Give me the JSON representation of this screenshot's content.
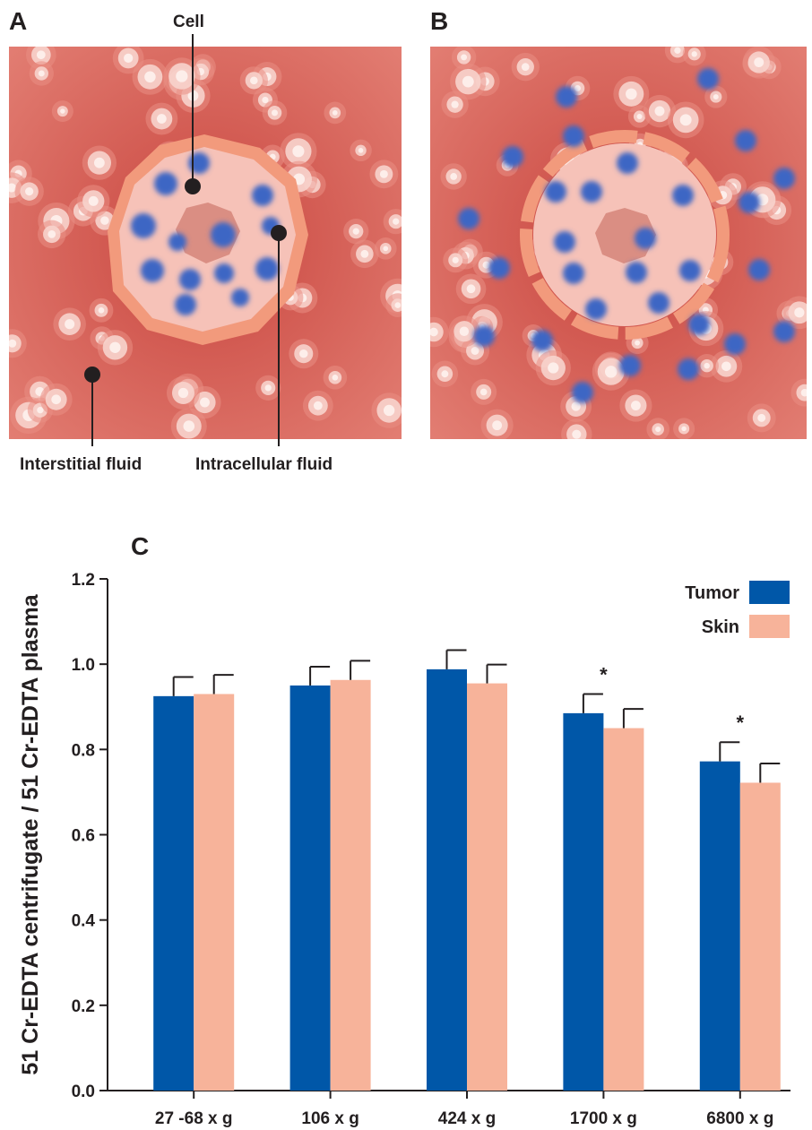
{
  "panels": {
    "a": {
      "letter": "A",
      "labels": {
        "cell": "Cell",
        "interstitial": "Interstitial fluid",
        "intracellular": "Intracellular fluid"
      }
    },
    "b": {
      "letter": "B"
    },
    "c": {
      "letter": "C"
    }
  },
  "colors": {
    "tumor": "#0057a8",
    "skin": "#f7b39a",
    "tissue": "#d9665e",
    "cell_membrane": "#f29a7c",
    "cell_interior": "#f6c2b8",
    "marker": "#3e66c4"
  },
  "chart_data": {
    "type": "bar",
    "title": "",
    "xlabel": "",
    "ylabel": "51 Cr-EDTA centrifugate / 51 Cr-EDTA plasma",
    "ylim": [
      0,
      1.2
    ],
    "yticks": [
      "0.0",
      "0.2",
      "0.4",
      "0.6",
      "0.8",
      "1.0",
      "1.2"
    ],
    "categories": [
      "27 -68 x g",
      "106 x g",
      "424 x g",
      "1700 x g",
      "6800 x g"
    ],
    "series": [
      {
        "name": "Tumor",
        "values": [
          0.925,
          0.95,
          0.988,
          0.885,
          0.772
        ],
        "errors": [
          0.045,
          0.044,
          0.045,
          0.045,
          0.045
        ]
      },
      {
        "name": "Skin",
        "values": [
          0.93,
          0.963,
          0.955,
          0.85,
          0.722
        ],
        "errors": [
          0.045,
          0.045,
          0.044,
          0.045,
          0.045
        ]
      }
    ],
    "significance": [
      "",
      "",
      "",
      "*",
      "*"
    ],
    "legend": "top-right",
    "grid": false
  }
}
